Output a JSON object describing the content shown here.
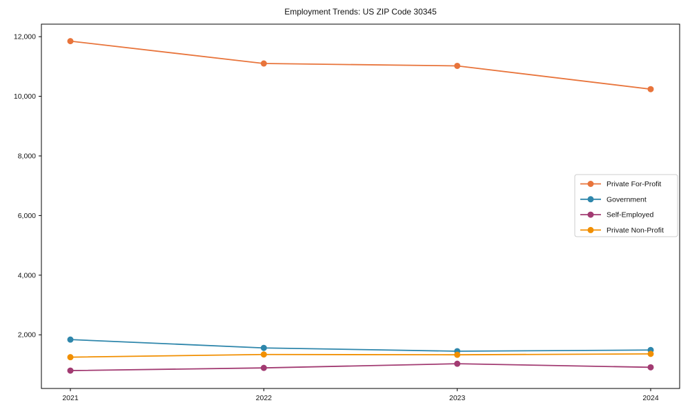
{
  "page": {
    "background": "#ffffff",
    "text_color": "#111111",
    "axis_color": "#000000"
  },
  "chart_data": {
    "type": "line",
    "title": "Employment Trends: US ZIP Code 30345",
    "xlabel": "",
    "ylabel": "",
    "categories": [
      "2021",
      "2022",
      "2023",
      "2024"
    ],
    "series": [
      {
        "name": "Private For-Profit",
        "color": "#e8743b",
        "values": [
          11850,
          11100,
          11020,
          10240
        ]
      },
      {
        "name": "Government",
        "color": "#2e86ab",
        "values": [
          1840,
          1560,
          1450,
          1490
        ]
      },
      {
        "name": "Self-Employed",
        "color": "#a23b72",
        "values": [
          800,
          890,
          1030,
          910
        ]
      },
      {
        "name": "Private Non-Profit",
        "color": "#f18f01",
        "values": [
          1250,
          1340,
          1330,
          1360
        ]
      }
    ],
    "yticks": [
      2000,
      4000,
      6000,
      8000,
      10000,
      12000
    ],
    "ylim": [
      200,
      12420
    ],
    "grid": false,
    "legend_position": "center right",
    "marker": "circle",
    "tick_label_format": "thousands-comma"
  }
}
